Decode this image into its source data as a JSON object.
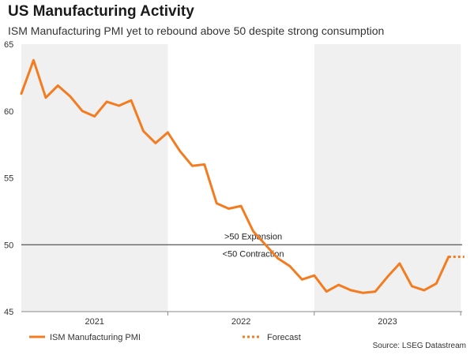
{
  "header": {
    "title": "US Manufacturing Activity",
    "subtitle": "ISM Manufacturing PMI yet to rebound above 50 despite strong consumption"
  },
  "source": "Source: LSEG Datastream",
  "colors": {
    "series": "#f47c20",
    "shade": "#f0f0f0",
    "threshold": "#555555",
    "axis": "#888888"
  },
  "chart_data": {
    "type": "line",
    "title": "US Manufacturing Activity",
    "subtitle": "ISM Manufacturing PMI yet to rebound above 50 despite strong consumption",
    "xlabel": "",
    "ylabel": "",
    "ylim": [
      45,
      65
    ],
    "yticks": [
      45,
      50,
      55,
      60,
      65
    ],
    "grid": false,
    "x_start": "2021-01",
    "x_range": [
      0,
      36.3
    ],
    "year_labels": [
      {
        "label": "2021",
        "center": 6
      },
      {
        "label": "2022",
        "center": 18
      },
      {
        "label": "2023",
        "center": 30
      }
    ],
    "shaded_bands": [
      [
        0,
        12
      ],
      [
        24,
        36
      ]
    ],
    "threshold": {
      "value": 50,
      "label_above": ">50 Expansion",
      "label_below": "<50 Contraction"
    },
    "series": [
      {
        "name": "ISM Manufacturing PMI",
        "style": "solid",
        "x": [
          0,
          1,
          2,
          3,
          4,
          5,
          6,
          7,
          8,
          9,
          10,
          11,
          12,
          13,
          14,
          15,
          16,
          17,
          18,
          19,
          20,
          21,
          22,
          23,
          24,
          25,
          26,
          27,
          28,
          29,
          30,
          31,
          32,
          33,
          34,
          35
        ],
        "values": [
          61.3,
          63.8,
          61.0,
          61.9,
          61.1,
          60.0,
          59.6,
          60.7,
          60.4,
          60.8,
          58.5,
          57.6,
          58.4,
          57.0,
          55.9,
          56.0,
          53.1,
          52.7,
          52.9,
          51.0,
          50.0,
          49.0,
          48.4,
          47.4,
          47.7,
          46.5,
          47.0,
          46.6,
          46.4,
          46.5,
          47.6,
          48.6,
          46.9,
          46.6,
          47.1,
          49.1
        ]
      },
      {
        "name": "Forecast",
        "style": "dotted",
        "x": [
          35,
          36.3
        ],
        "values": [
          49.1,
          49.1
        ]
      }
    ]
  }
}
